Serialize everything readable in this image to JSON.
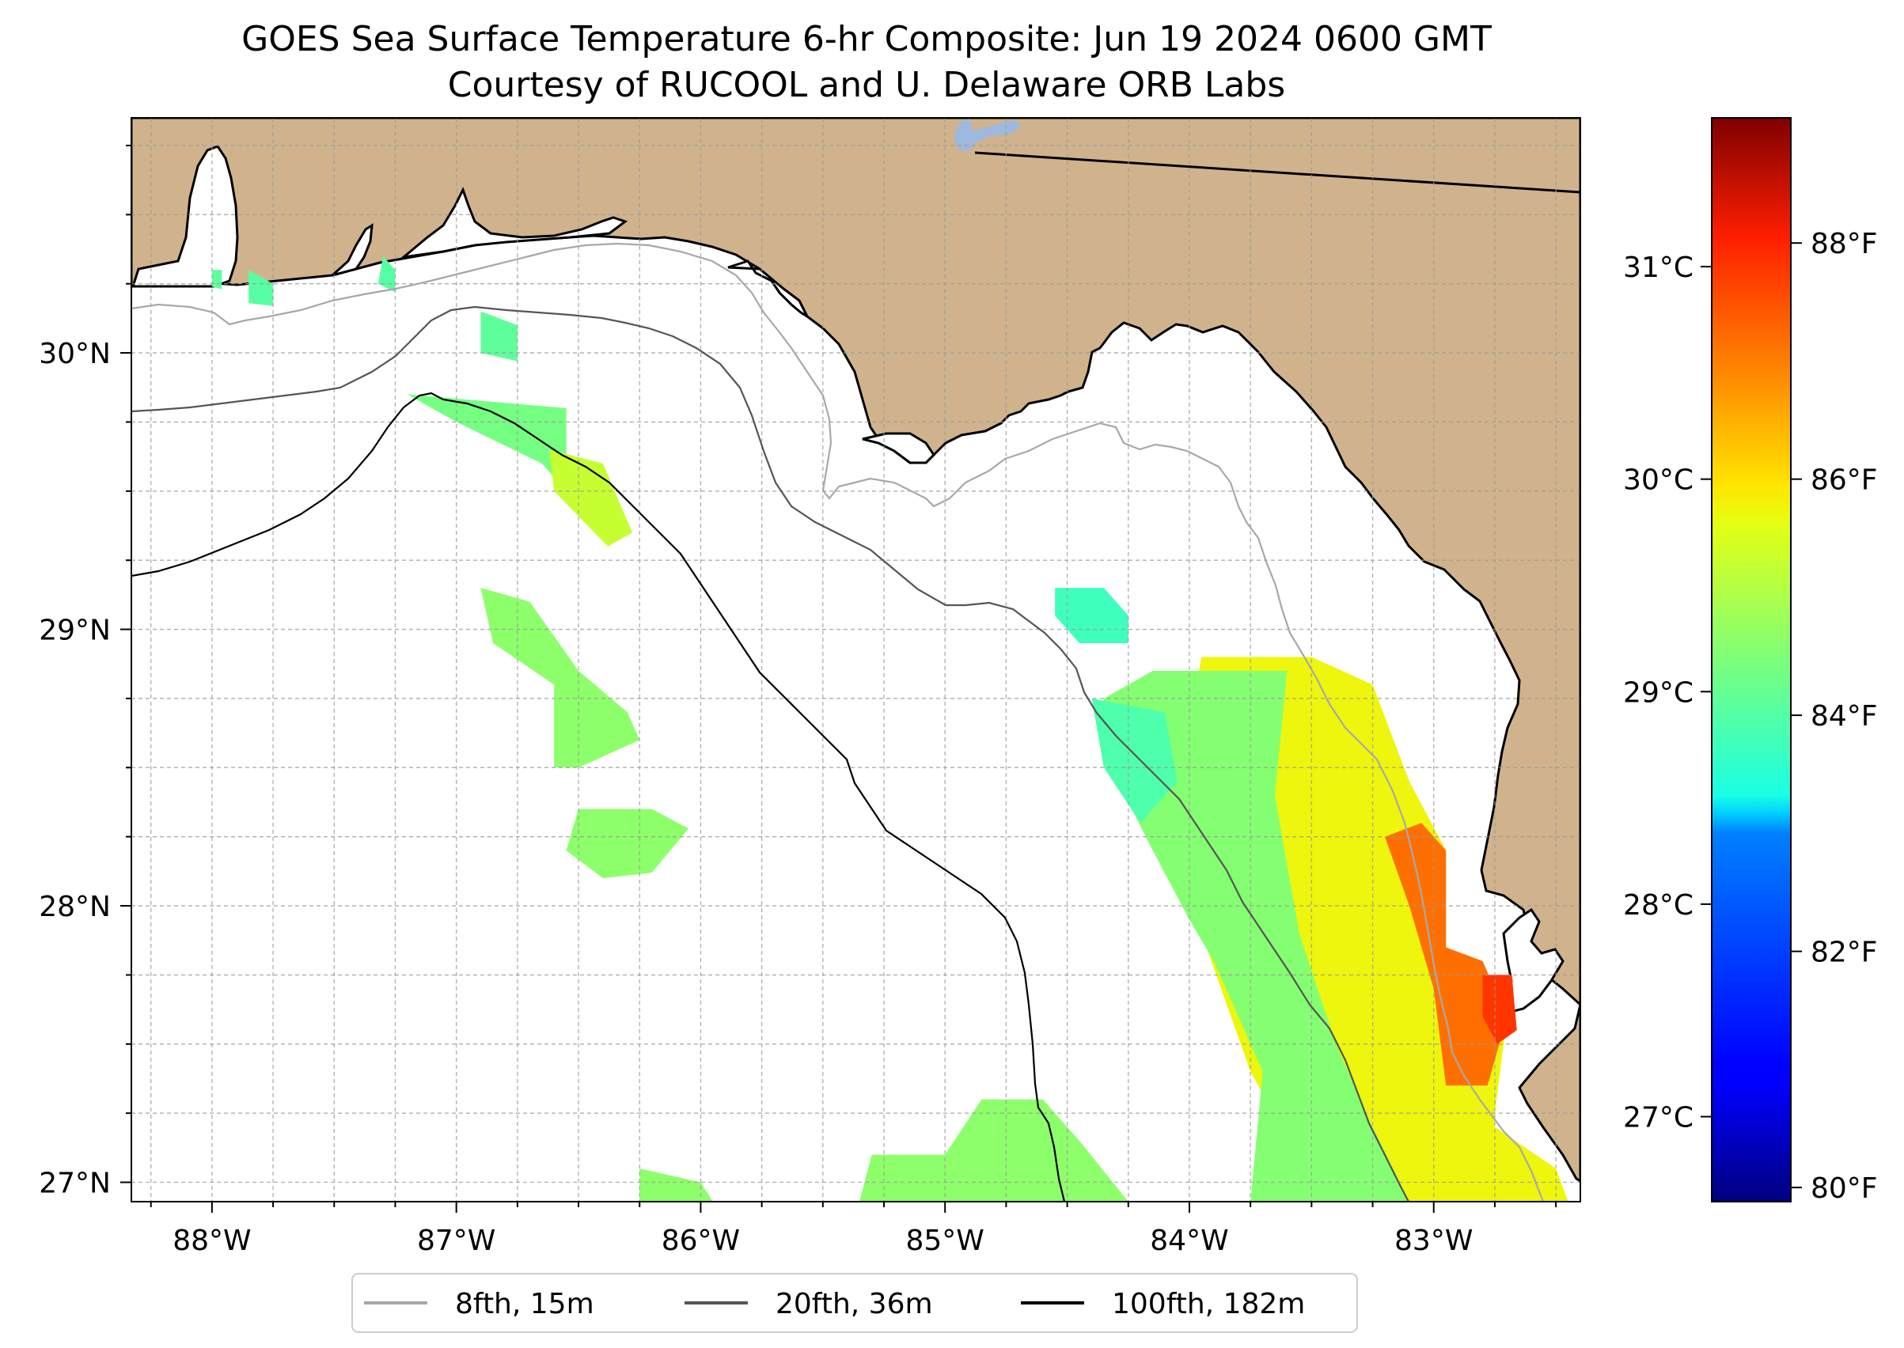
{
  "title": "GOES Sea Surface Temperature 6-hr Composite: Jun 19 2024 0600 GMT",
  "subtitle": "Courtesy of RUCOOL and U. Delaware ORB Labs",
  "map": {
    "lon_range": [
      -88.33,
      -82.4
    ],
    "lat_range": [
      26.93,
      30.85
    ],
    "lon_ticks": [
      {
        "value": -88,
        "label": "88°W"
      },
      {
        "value": -87,
        "label": "87°W"
      },
      {
        "value": -86,
        "label": "86°W"
      },
      {
        "value": -85,
        "label": "85°W"
      },
      {
        "value": -84,
        "label": "84°W"
      },
      {
        "value": -83,
        "label": "83°W"
      }
    ],
    "lat_ticks": [
      {
        "value": 27,
        "label": "27°N"
      },
      {
        "value": 28,
        "label": "28°N"
      },
      {
        "value": 29,
        "label": "29°N"
      },
      {
        "value": 30,
        "label": "30°N"
      }
    ],
    "grid": true,
    "land_color": "#d0b38c",
    "ocean_color": "#ffffff",
    "water_inland_color": "#9fb8dd"
  },
  "colorbar": {
    "colormap": "jet",
    "range_c": [
      26.6,
      31.7
    ],
    "celsius_ticks": [
      {
        "value": 27,
        "label": "27°C"
      },
      {
        "value": 28,
        "label": "28°C"
      },
      {
        "value": 29,
        "label": "29°C"
      },
      {
        "value": 30,
        "label": "30°C"
      },
      {
        "value": 31,
        "label": "31°C"
      }
    ],
    "fahrenheit_ticks": [
      {
        "value": 80,
        "label": "80°F"
      },
      {
        "value": 82,
        "label": "82°F"
      },
      {
        "value": 84,
        "label": "84°F"
      },
      {
        "value": 86,
        "label": "86°F"
      },
      {
        "value": 88,
        "label": "88°F"
      }
    ]
  },
  "legend": {
    "placement": "bottom-center",
    "items": [
      {
        "label": "8fth, 15m",
        "color": "#a8a8a8"
      },
      {
        "label": "20fth, 36m",
        "color": "#555555"
      },
      {
        "label": "100fth, 182m",
        "color": "#000000"
      }
    ]
  },
  "sst_patches": [
    {
      "name": "west-florida-shelf-yellow",
      "temp_c": 29.85,
      "pts": [
        [
          -83.95,
          28.9
        ],
        [
          -83.5,
          28.9
        ],
        [
          -83.25,
          28.8
        ],
        [
          -83.1,
          28.45
        ],
        [
          -82.95,
          28.2
        ],
        [
          -82.95,
          27.85
        ],
        [
          -82.7,
          27.6
        ],
        [
          -82.75,
          27.25
        ],
        [
          -82.75,
          27.2
        ],
        [
          -82.5,
          27.05
        ],
        [
          -82.45,
          26.93
        ],
        [
          -83.45,
          26.93
        ],
        [
          -83.75,
          27.4
        ],
        [
          -83.95,
          27.9
        ],
        [
          -84.1,
          28.2
        ]
      ]
    },
    {
      "name": "west-florida-shelf-green",
      "temp_c": 29.2,
      "pts": [
        [
          -84.35,
          28.75
        ],
        [
          -84.15,
          28.85
        ],
        [
          -83.6,
          28.85
        ],
        [
          -83.65,
          28.4
        ],
        [
          -83.55,
          27.9
        ],
        [
          -83.4,
          27.5
        ],
        [
          -83.25,
          27.2
        ],
        [
          -83.1,
          26.93
        ],
        [
          -83.75,
          26.93
        ],
        [
          -83.7,
          27.4
        ],
        [
          -83.9,
          27.8
        ],
        [
          -84.0,
          27.95
        ],
        [
          -84.15,
          28.2
        ],
        [
          -84.35,
          28.55
        ]
      ]
    },
    {
      "name": "cedar-key-cyan",
      "temp_c": 28.85,
      "pts": [
        [
          -84.4,
          28.75
        ],
        [
          -84.1,
          28.7
        ],
        [
          -84.05,
          28.45
        ],
        [
          -84.2,
          28.3
        ],
        [
          -84.35,
          28.5
        ]
      ]
    },
    {
      "name": "tampa-bay-orange",
      "temp_c": 30.65,
      "pts": [
        [
          -83.05,
          28.3
        ],
        [
          -82.95,
          28.2
        ],
        [
          -82.95,
          27.85
        ],
        [
          -82.8,
          27.8
        ],
        [
          -82.7,
          27.6
        ],
        [
          -82.78,
          27.35
        ],
        [
          -82.95,
          27.35
        ],
        [
          -83.0,
          27.7
        ],
        [
          -83.1,
          28.0
        ],
        [
          -83.2,
          28.25
        ]
      ]
    },
    {
      "name": "tampa-bay-red",
      "temp_c": 31.0,
      "pts": [
        [
          -82.8,
          27.75
        ],
        [
          -82.68,
          27.75
        ],
        [
          -82.66,
          27.55
        ],
        [
          -82.74,
          27.5
        ],
        [
          -82.8,
          27.6
        ]
      ]
    },
    {
      "name": "big-bend-patch",
      "temp_c": 28.75,
      "pts": [
        [
          -84.55,
          29.15
        ],
        [
          -84.35,
          29.15
        ],
        [
          -84.25,
          29.05
        ],
        [
          -84.25,
          28.95
        ],
        [
          -84.45,
          28.95
        ],
        [
          -84.55,
          29.05
        ]
      ]
    },
    {
      "name": "southern-patch-a",
      "temp_c": 29.25,
      "pts": [
        [
          -85.3,
          27.1
        ],
        [
          -85.0,
          27.1
        ],
        [
          -84.85,
          27.3
        ],
        [
          -84.6,
          27.3
        ],
        [
          -84.45,
          27.15
        ],
        [
          -84.25,
          26.93
        ],
        [
          -85.35,
          26.93
        ]
      ]
    },
    {
      "name": "southern-patch-b",
      "temp_c": 29.25,
      "pts": [
        [
          -86.25,
          27.05
        ],
        [
          -86.0,
          27.0
        ],
        [
          -85.95,
          26.93
        ],
        [
          -86.25,
          26.93
        ]
      ]
    },
    {
      "name": "offshore-patch-1",
      "temp_c": 29.25,
      "pts": [
        [
          -86.9,
          29.15
        ],
        [
          -86.7,
          29.1
        ],
        [
          -86.5,
          28.85
        ],
        [
          -86.3,
          28.7
        ],
        [
          -86.25,
          28.6
        ],
        [
          -86.5,
          28.5
        ],
        [
          -86.6,
          28.5
        ],
        [
          -86.6,
          28.8
        ],
        [
          -86.85,
          28.95
        ]
      ]
    },
    {
      "name": "offshore-patch-2",
      "temp_c": 29.25,
      "pts": [
        [
          -86.5,
          28.35
        ],
        [
          -86.2,
          28.35
        ],
        [
          -86.05,
          28.28
        ],
        [
          -86.2,
          28.12
        ],
        [
          -86.4,
          28.1
        ],
        [
          -86.55,
          28.2
        ]
      ]
    },
    {
      "name": "offshore-patch-3",
      "temp_c": 29.1,
      "pts": [
        [
          -87.2,
          29.85
        ],
        [
          -86.55,
          29.8
        ],
        [
          -86.55,
          29.5
        ],
        [
          -86.65,
          29.6
        ],
        [
          -87.0,
          29.75
        ]
      ]
    },
    {
      "name": "offshore-patch-4",
      "temp_c": 29.6,
      "pts": [
        [
          -86.62,
          29.65
        ],
        [
          -86.4,
          29.6
        ],
        [
          -86.28,
          29.35
        ],
        [
          -86.38,
          29.3
        ],
        [
          -86.6,
          29.5
        ]
      ]
    },
    {
      "name": "coastal-patch-1",
      "temp_c": 28.95,
      "pts": [
        [
          -86.9,
          30.15
        ],
        [
          -86.75,
          30.1
        ],
        [
          -86.75,
          29.97
        ],
        [
          -86.9,
          30.0
        ]
      ]
    },
    {
      "name": "coastal-patch-2",
      "temp_c": 28.9,
      "pts": [
        [
          -87.85,
          30.3
        ],
        [
          -87.75,
          30.25
        ],
        [
          -87.75,
          30.17
        ],
        [
          -87.85,
          30.18
        ]
      ]
    },
    {
      "name": "coastal-patch-3",
      "temp_c": 28.9,
      "pts": [
        [
          -87.3,
          30.35
        ],
        [
          -87.25,
          30.3
        ],
        [
          -87.25,
          30.22
        ],
        [
          -87.32,
          30.25
        ]
      ]
    },
    {
      "name": "coastal-patch-4",
      "temp_c": 28.95,
      "pts": [
        [
          -88.0,
          30.3
        ],
        [
          -87.96,
          30.3
        ],
        [
          -87.96,
          30.23
        ],
        [
          -88.0,
          30.24
        ]
      ]
    }
  ]
}
